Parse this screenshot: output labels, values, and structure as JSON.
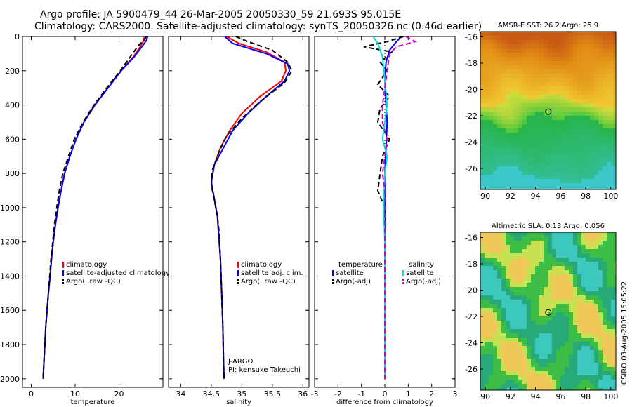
{
  "header": {
    "line1": "Argo profile: JA 5900479_44 26-Mar-2005 20050330_59 21.693S 95.015E",
    "line2": "Climatology: CARS2000. Satellite-adjusted climatology: synTS_20050326.nc (0.46d earlier)"
  },
  "side_stamp": "CSIRO 03-Aug-2005 15:05:22",
  "chart_data": [
    {
      "id": "temperature",
      "type": "line",
      "xlabel": "temperature",
      "xlim": [
        -2,
        30
      ],
      "ylim": [
        0,
        2050
      ],
      "xticks": [
        0,
        10,
        20
      ],
      "xtick_labels": [
        "0",
        "10",
        "20"
      ],
      "yticks": [
        0,
        200,
        400,
        600,
        800,
        1000,
        1200,
        1400,
        1600,
        1800,
        2000
      ],
      "ytick_labels": [
        "0",
        "200",
        "400",
        "600",
        "800",
        "1000",
        "1200",
        "1400",
        "1600",
        "1800",
        "2000"
      ],
      "series": [
        {
          "name": "climatology",
          "color": "#ff0000",
          "dash": "solid",
          "points": [
            [
              25.8,
              0
            ],
            [
              25.5,
              30
            ],
            [
              24.8,
              60
            ],
            [
              23.2,
              120
            ],
            [
              20.5,
              200
            ],
            [
              17.5,
              300
            ],
            [
              14.5,
              400
            ],
            [
              12,
              500
            ],
            [
              10.2,
              600
            ],
            [
              8.8,
              700
            ],
            [
              7.6,
              800
            ],
            [
              6.8,
              900
            ],
            [
              6.1,
              1000
            ],
            [
              5.5,
              1100
            ],
            [
              5,
              1200
            ],
            [
              4.6,
              1300
            ],
            [
              4.3,
              1400
            ],
            [
              3.9,
              1500
            ],
            [
              3.6,
              1600
            ],
            [
              3.3,
              1700
            ],
            [
              3.1,
              1800
            ],
            [
              2.9,
              1900
            ],
            [
              2.7,
              2000
            ]
          ]
        },
        {
          "name": "satellite-adjusted climatology",
          "color": "#0000ff",
          "dash": "solid",
          "points": [
            [
              26.5,
              0
            ],
            [
              26.3,
              20
            ],
            [
              25.2,
              60
            ],
            [
              23.4,
              120
            ],
            [
              20.5,
              200
            ],
            [
              17.5,
              300
            ],
            [
              14.5,
              400
            ],
            [
              12,
              500
            ],
            [
              10.2,
              600
            ],
            [
              8.8,
              700
            ],
            [
              7.6,
              800
            ],
            [
              6.8,
              900
            ],
            [
              6.1,
              1000
            ],
            [
              5.5,
              1100
            ],
            [
              5,
              1200
            ],
            [
              4.6,
              1300
            ],
            [
              4.3,
              1400
            ],
            [
              3.9,
              1500
            ],
            [
              3.6,
              1600
            ],
            [
              3.3,
              1700
            ],
            [
              3.1,
              1800
            ],
            [
              2.9,
              1900
            ],
            [
              2.7,
              2000
            ]
          ]
        },
        {
          "name": "Argo(..raw -QC)",
          "color": "#000000",
          "dash": "dashed",
          "points": [
            [
              26.2,
              0
            ],
            [
              25.8,
              20
            ],
            [
              24.5,
              50
            ],
            [
              22.8,
              110
            ],
            [
              20.3,
              200
            ],
            [
              17.2,
              300
            ],
            [
              14.3,
              400
            ],
            [
              11.8,
              500
            ],
            [
              9.8,
              600
            ],
            [
              8.5,
              700
            ],
            [
              7.2,
              800
            ],
            [
              6.4,
              900
            ],
            [
              5.8,
              1000
            ],
            [
              5.3,
              1100
            ],
            [
              4.9,
              1200
            ],
            [
              4.5,
              1300
            ],
            [
              4.2,
              1400
            ],
            [
              3.9,
              1500
            ],
            [
              3.6,
              1600
            ],
            [
              3.3,
              1700
            ],
            [
              3.1,
              1800
            ],
            [
              2.9,
              1900
            ],
            [
              2.7,
              2000
            ]
          ]
        }
      ],
      "legend": {
        "position": "lower-right",
        "entries": [
          "climatology",
          "satellite-adjusted climatology",
          "Argo(..raw -QC)"
        ]
      }
    },
    {
      "id": "salinity",
      "type": "line",
      "xlabel": "salinity",
      "xlim": [
        33.8,
        36.1
      ],
      "ylim": [
        0,
        2050
      ],
      "xticks": [
        34,
        34.5,
        35,
        35.5,
        36
      ],
      "xtick_labels": [
        "34",
        "34.5",
        "35",
        "35.5",
        "36"
      ],
      "series": [
        {
          "name": "climatology",
          "color": "#ff0000",
          "dash": "solid",
          "points": [
            [
              34.75,
              0
            ],
            [
              34.95,
              40
            ],
            [
              35.4,
              90
            ],
            [
              35.7,
              150
            ],
            [
              35.72,
              200
            ],
            [
              35.65,
              260
            ],
            [
              35.3,
              350
            ],
            [
              35.0,
              450
            ],
            [
              34.8,
              550
            ],
            [
              34.65,
              650
            ],
            [
              34.55,
              750
            ],
            [
              34.5,
              850
            ],
            [
              34.55,
              950
            ],
            [
              34.6,
              1050
            ],
            [
              34.62,
              1150
            ],
            [
              34.65,
              1300
            ],
            [
              34.67,
              1500
            ],
            [
              34.69,
              1700
            ],
            [
              34.7,
              1900
            ],
            [
              34.71,
              2000
            ]
          ]
        },
        {
          "name": "satellite adj. clim.",
          "color": "#0000ff",
          "dash": "solid",
          "points": [
            [
              34.72,
              0
            ],
            [
              34.85,
              40
            ],
            [
              35.4,
              100
            ],
            [
              35.75,
              160
            ],
            [
              35.78,
              200
            ],
            [
              35.7,
              260
            ],
            [
              35.4,
              350
            ],
            [
              35.1,
              450
            ],
            [
              34.85,
              550
            ],
            [
              34.7,
              650
            ],
            [
              34.55,
              750
            ],
            [
              34.5,
              850
            ],
            [
              34.55,
              950
            ],
            [
              34.6,
              1050
            ],
            [
              34.62,
              1150
            ],
            [
              34.65,
              1300
            ],
            [
              34.67,
              1500
            ],
            [
              34.69,
              1700
            ],
            [
              34.7,
              1900
            ],
            [
              34.71,
              2000
            ]
          ]
        },
        {
          "name": "Argo(..raw -QC)",
          "color": "#000000",
          "dash": "dashed",
          "points": [
            [
              34.9,
              0
            ],
            [
              35.1,
              30
            ],
            [
              35.5,
              80
            ],
            [
              35.75,
              150
            ],
            [
              35.82,
              200
            ],
            [
              35.7,
              270
            ],
            [
              35.3,
              380
            ],
            [
              35.0,
              480
            ],
            [
              34.75,
              580
            ],
            [
              34.62,
              680
            ],
            [
              34.52,
              780
            ],
            [
              34.5,
              870
            ],
            [
              34.55,
              950
            ],
            [
              34.6,
              1050
            ],
            [
              34.63,
              1150
            ],
            [
              34.65,
              1300
            ],
            [
              34.67,
              1500
            ],
            [
              34.69,
              1700
            ],
            [
              34.7,
              1900
            ],
            [
              34.71,
              2000
            ]
          ]
        }
      ],
      "legend": {
        "position": "lower-right",
        "entries": [
          "climatology",
          "satellite adj. clim.",
          "Argo(..raw -QC)"
        ]
      },
      "annotation": [
        "J-ARGO",
        "PI: kensuke Takeuchi"
      ]
    },
    {
      "id": "difference",
      "type": "line",
      "xlabel": "difference from climatology",
      "xlim": [
        -3,
        3
      ],
      "ylim": [
        0,
        2050
      ],
      "xticks": [
        -3,
        -2,
        -1,
        0,
        1,
        2,
        3
      ],
      "xtick_labels": [
        "-3",
        "-2",
        "-1",
        "0",
        "1",
        "2",
        "3"
      ],
      "series": [
        {
          "name": "temperature satellite",
          "color": "#0000ff",
          "dash": "solid",
          "points": [
            [
              0.7,
              0
            ],
            [
              0.5,
              30
            ],
            [
              0.2,
              80
            ],
            [
              0.05,
              150
            ],
            [
              0,
              250
            ],
            [
              0.05,
              400
            ],
            [
              0.1,
              500
            ],
            [
              0.05,
              650
            ],
            [
              0,
              800
            ],
            [
              0,
              1000
            ],
            [
              0,
              2000
            ]
          ]
        },
        {
          "name": "temperature Argo(-adj)",
          "color": "#000000",
          "dash": "dashed",
          "points": [
            [
              0.8,
              0
            ],
            [
              0.1,
              30
            ],
            [
              -0.9,
              60
            ],
            [
              0.3,
              90
            ],
            [
              -0.2,
              150
            ],
            [
              0.1,
              200
            ],
            [
              -0.3,
              280
            ],
            [
              0.2,
              350
            ],
            [
              -0.2,
              420
            ],
            [
              -0.3,
              500
            ],
            [
              0.2,
              600
            ],
            [
              -0.1,
              700
            ],
            [
              -0.2,
              800
            ],
            [
              -0.3,
              900
            ],
            [
              0,
              1000
            ],
            [
              0,
              1200
            ],
            [
              0,
              2000
            ]
          ]
        },
        {
          "name": "salinity satellite",
          "color": "#00e0e0",
          "dash": "solid",
          "points": [
            [
              -0.5,
              0
            ],
            [
              -0.3,
              40
            ],
            [
              -0.1,
              120
            ],
            [
              0,
              250
            ],
            [
              0.1,
              400
            ],
            [
              0,
              500
            ],
            [
              -0.1,
              600
            ],
            [
              0.1,
              700
            ],
            [
              0,
              800
            ],
            [
              -0.05,
              1000
            ],
            [
              0,
              1200
            ],
            [
              0,
              2000
            ]
          ]
        },
        {
          "name": "salinity Argo(-adj)",
          "color": "#cc00cc",
          "dash": "dashed",
          "points": [
            [
              0.9,
              0
            ],
            [
              1.3,
              30
            ],
            [
              0.5,
              60
            ],
            [
              0.2,
              100
            ],
            [
              0.15,
              150
            ],
            [
              0.05,
              250
            ],
            [
              -0.1,
              400
            ],
            [
              -0.1,
              500
            ],
            [
              0.1,
              600
            ],
            [
              0,
              700
            ],
            [
              -0.1,
              800
            ],
            [
              0,
              900
            ],
            [
              0,
              1000
            ],
            [
              0,
              2000
            ]
          ]
        }
      ],
      "legend_left": {
        "title": "temperature",
        "entries": [
          "satellite",
          "Argo(-adj)"
        ]
      },
      "legend_right": {
        "title": "salinity",
        "entries": [
          "satellite",
          "Argo(-adj)"
        ]
      }
    },
    {
      "id": "sst_map",
      "type": "heatmap",
      "title": "AMSR-E SST: 26.2 Argo: 25.9",
      "xlim": [
        89.6,
        100.4
      ],
      "ylim": [
        -27.6,
        -15.6
      ],
      "xticks": [
        90,
        92,
        94,
        96,
        98,
        100
      ],
      "yticks": [
        -16,
        -18,
        -20,
        -22,
        -24,
        -26
      ],
      "marker": {
        "lon": 95.015,
        "lat": -21.693
      }
    },
    {
      "id": "sla_map",
      "type": "heatmap",
      "title": "Altimetric SLA: 0.13 Argo: 0.056",
      "xlim": [
        89.6,
        100.4
      ],
      "ylim": [
        -27.6,
        -15.6
      ],
      "xticks": [
        90,
        92,
        94,
        96,
        98,
        100
      ],
      "yticks": [
        -16,
        -18,
        -20,
        -22,
        -24,
        -26
      ],
      "marker": {
        "lon": 95.015,
        "lat": -21.693
      }
    }
  ]
}
